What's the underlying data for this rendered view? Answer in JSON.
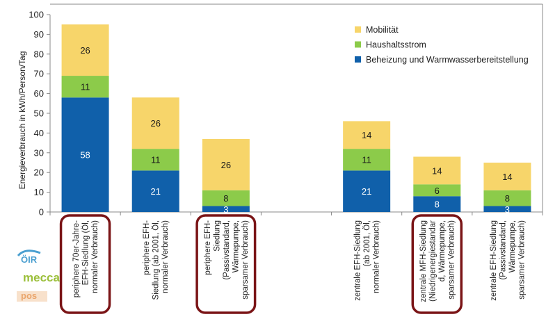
{
  "chart_data": {
    "type": "bar",
    "stacked": true,
    "ylabel": "Energieverbrauch in kWh/Person/Tag",
    "ylim": [
      0,
      100
    ],
    "yticks": [
      0,
      10,
      20,
      30,
      40,
      50,
      60,
      70,
      80,
      90,
      100
    ],
    "grid": false,
    "legend_position": "top-right",
    "categories": [
      [
        "periphere 70er-Jahre-",
        "EFH-Siedlung (Öl,",
        "normaler Verbrauch)"
      ],
      [
        "periphere EFH-",
        "Siedlung (ab 2001, Öl,",
        "normaler Verbrauch)"
      ],
      [
        "periphere EFH-",
        "Siedlung",
        "(Passivstandard,",
        "Wärmepumpe,",
        "sparsamer Verbrauch)"
      ],
      [],
      [
        "zentrale EFH-Siedlung",
        "(ab 2001, Öl,",
        "normaler Verbrauch)"
      ],
      [
        "zentrale MFH-Siedlung",
        "(Niedrigenergiestandar",
        "d, Wärmepumpe,",
        "sparsamer Verbrauch)"
      ],
      [
        "zentrale EFH-Siedlung",
        "(Passivstandard,",
        "Wärmepumpe,",
        "sparsamer Verbrauch)"
      ]
    ],
    "highlighted": [
      true,
      false,
      true,
      false,
      false,
      true,
      false
    ],
    "series": [
      {
        "name": "Beheizung und Warmwasserbereitstellung",
        "color": "#1060aa",
        "label_color": "#ffffff",
        "values": [
          58,
          21,
          3,
          null,
          21,
          8,
          3
        ]
      },
      {
        "name": "Haushaltsstrom",
        "color": "#8ccb4a",
        "label_color": "#1a1a1a",
        "values": [
          11,
          11,
          8,
          null,
          11,
          6,
          8
        ]
      },
      {
        "name": "Mobilität",
        "color": "#f7d56a",
        "label_color": "#1a1a1a",
        "values": [
          26,
          26,
          26,
          null,
          14,
          14,
          14
        ]
      }
    ],
    "legend_order": [
      "Mobilität",
      "Haushaltsstrom",
      "Beheizung und Warmwasserbereitstellung"
    ],
    "highlight_color": "#7a1416"
  },
  "logos": {
    "items": [
      "ÖIR",
      "mecca",
      "pos"
    ],
    "colors": [
      "#4a9fd0",
      "#9bbf3a",
      "#e07b2a"
    ]
  }
}
